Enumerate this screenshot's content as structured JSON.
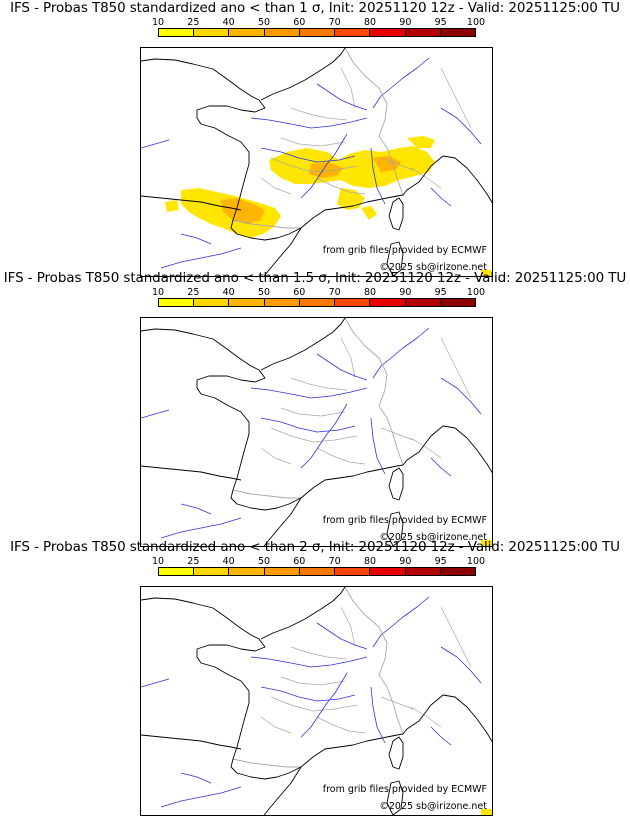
{
  "colorbar": {
    "labels": [
      "10",
      "25",
      "40",
      "50",
      "60",
      "70",
      "80",
      "90",
      "95",
      "100"
    ],
    "colors": [
      "#ffff00",
      "#ffd700",
      "#ffb400",
      "#ff9b00",
      "#ff7800",
      "#ff4600",
      "#e60000",
      "#b40000",
      "#8c0000",
      "#5a0000"
    ]
  },
  "colors": {
    "coast": "#000000",
    "rivers": "#3232dc",
    "borders": "#a8a8a8",
    "prob_low": "#ffe600",
    "prob_mid": "#ffb400"
  },
  "panels": [
    {
      "title": "IFS - Probas T850  standardized ano < than 1 σ, Init: 20251120 12z - Valid: 20251125:00 TU",
      "grib_credit": "from grib files provided by ECMWF",
      "copyright": "©2025 sb@irizone.net",
      "has_probability_area": true
    },
    {
      "title": "IFS - Probas T850  standardized ano < than 1.5 σ, Init: 20251120 12z - Valid: 20251125:00 TU",
      "grib_credit": "from grib files provided by ECMWF",
      "copyright": "©2025 sb@irizone.net",
      "has_probability_area": false
    },
    {
      "title": "IFS - Probas T850  standardized ano < than 2 σ, Init: 20251120 12z - Valid: 20251125:00 TU",
      "grib_credit": "from grib files provided by ECMWF",
      "copyright": "©2025 sb@irizone.net",
      "has_probability_area": false
    }
  ]
}
